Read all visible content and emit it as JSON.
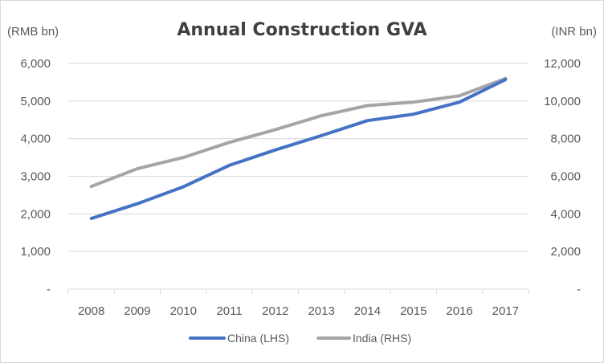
{
  "chart_data": {
    "type": "line",
    "title": "Annual Construction GVA",
    "y_left_label": "(RMB bn)",
    "y_right_label": "(INR bn)",
    "categories": [
      "2008",
      "2009",
      "2010",
      "2011",
      "2012",
      "2013",
      "2014",
      "2015",
      "2016",
      "2017"
    ],
    "y_left": {
      "range": [
        0,
        6000
      ],
      "ticks": [
        0,
        1000,
        2000,
        3000,
        4000,
        5000,
        6000
      ],
      "tick_labels": [
        "-",
        "1,000",
        "2,000",
        "3,000",
        "4,000",
        "5,000",
        "6,000"
      ]
    },
    "y_right": {
      "range": [
        0,
        12000
      ],
      "ticks": [
        0,
        2000,
        4000,
        6000,
        8000,
        10000,
        12000
      ],
      "tick_labels": [
        "-",
        "2,000",
        "4,000",
        "6,000",
        "8,000",
        "10,000",
        "12,000"
      ]
    },
    "series": [
      {
        "name": "China (LHS)",
        "axis": "left",
        "color": "#4472c4",
        "values": [
          1880,
          2270,
          2720,
          3290,
          3700,
          4080,
          4480,
          4650,
          4970,
          5570
        ]
      },
      {
        "name": "India (RHS)",
        "axis": "right",
        "color": "#a5a5a5",
        "values": [
          5460,
          6400,
          7000,
          7800,
          8480,
          9220,
          9760,
          9940,
          10280,
          11200
        ]
      }
    ],
    "grid": true,
    "legend_position": "bottom"
  }
}
